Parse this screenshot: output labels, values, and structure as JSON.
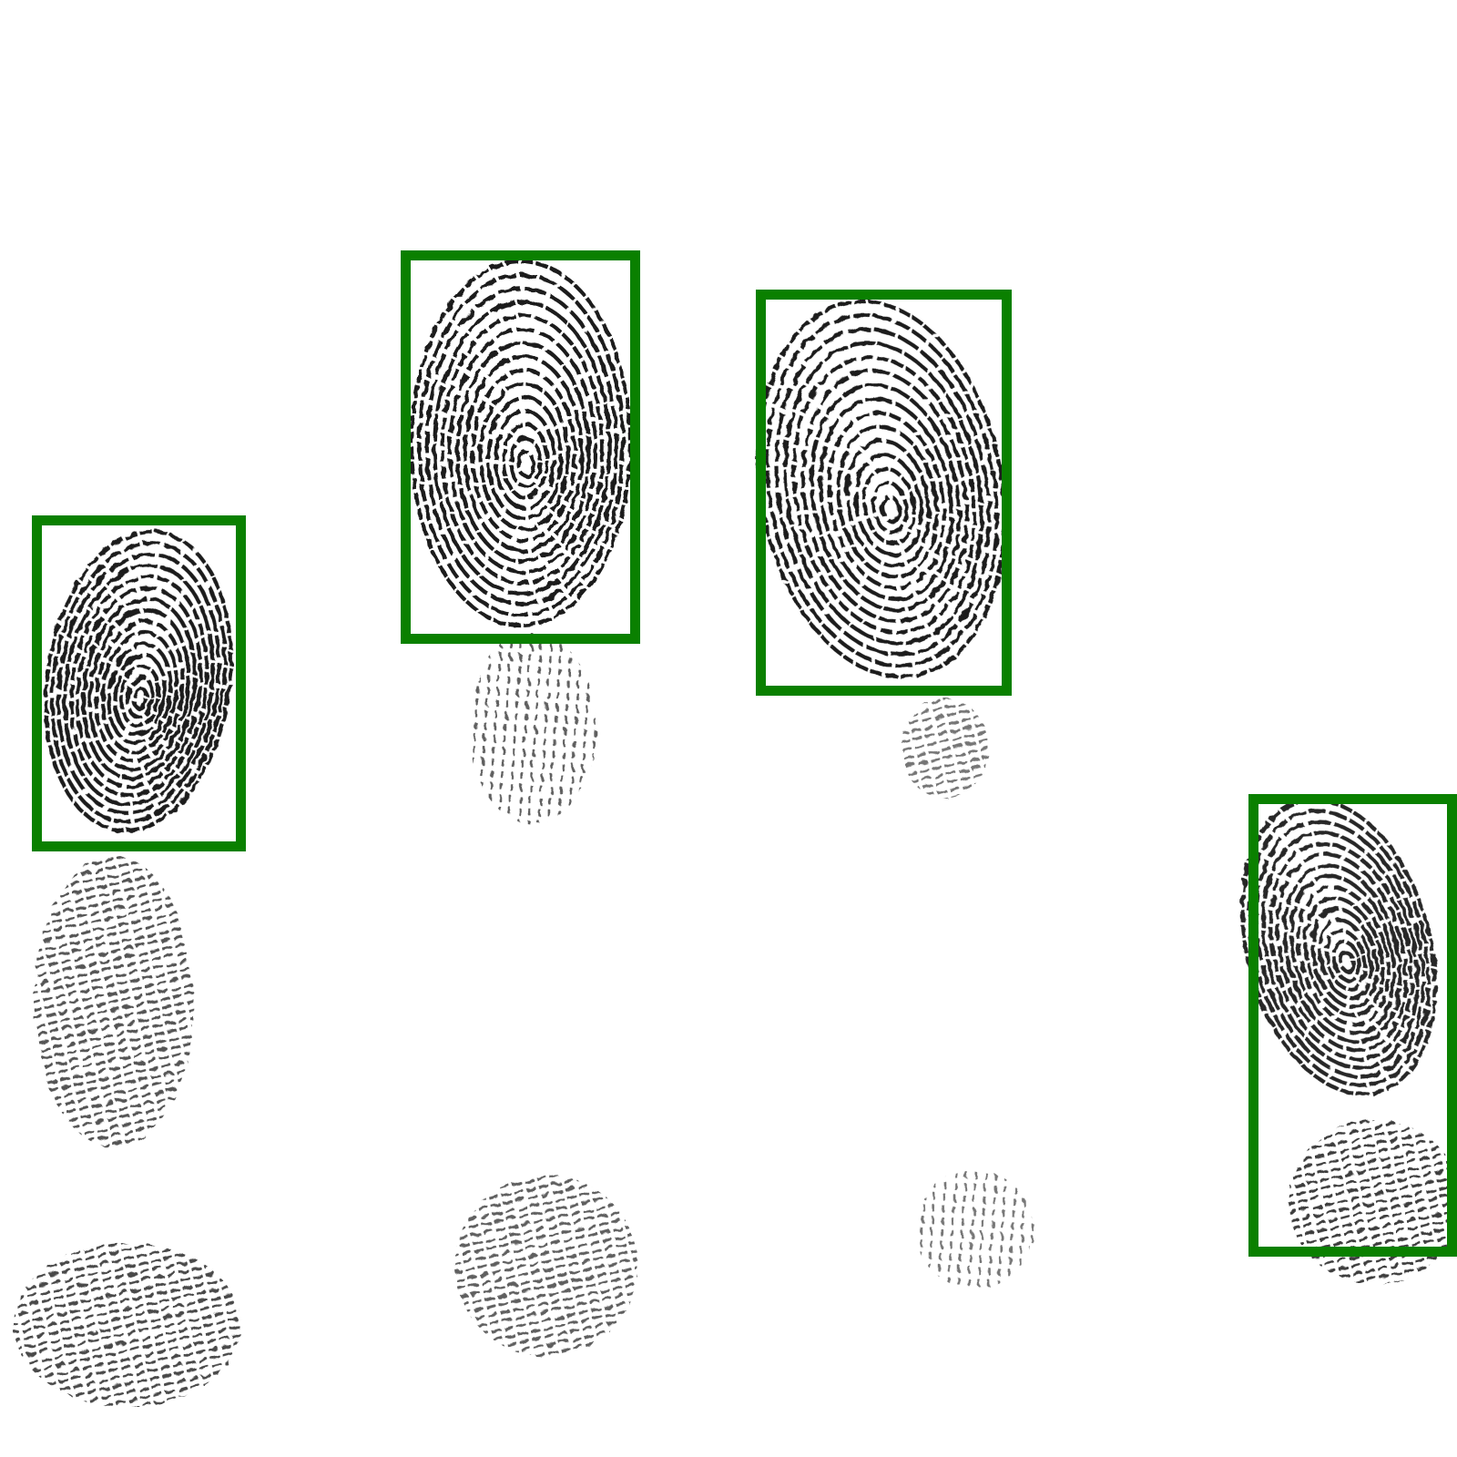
{
  "image": {
    "background": "#ffffff",
    "ink_color": "#1a1a1a",
    "box_color": "#0a8000"
  },
  "detections": [
    {
      "label": "fingerprint-detection-box-1"
    },
    {
      "label": "fingerprint-detection-box-2"
    },
    {
      "label": "fingerprint-detection-box-3"
    },
    {
      "label": "fingerprint-detection-box-4"
    }
  ],
  "fingerprints": [
    {
      "pattern": "loop",
      "impression": "distal"
    },
    {
      "pattern": "loop",
      "impression": "distal"
    },
    {
      "pattern": "loop",
      "impression": "distal"
    },
    {
      "pattern": "loop",
      "impression": "distal"
    },
    {
      "pattern": "ridges",
      "impression": "medial"
    },
    {
      "pattern": "ridges",
      "impression": "medial"
    },
    {
      "pattern": "ridges",
      "impression": "medial"
    },
    {
      "pattern": "ridges",
      "impression": "proximal"
    },
    {
      "pattern": "ridges",
      "impression": "proximal"
    },
    {
      "pattern": "ridges",
      "impression": "proximal"
    },
    {
      "pattern": "ridges",
      "impression": "proximal"
    }
  ]
}
